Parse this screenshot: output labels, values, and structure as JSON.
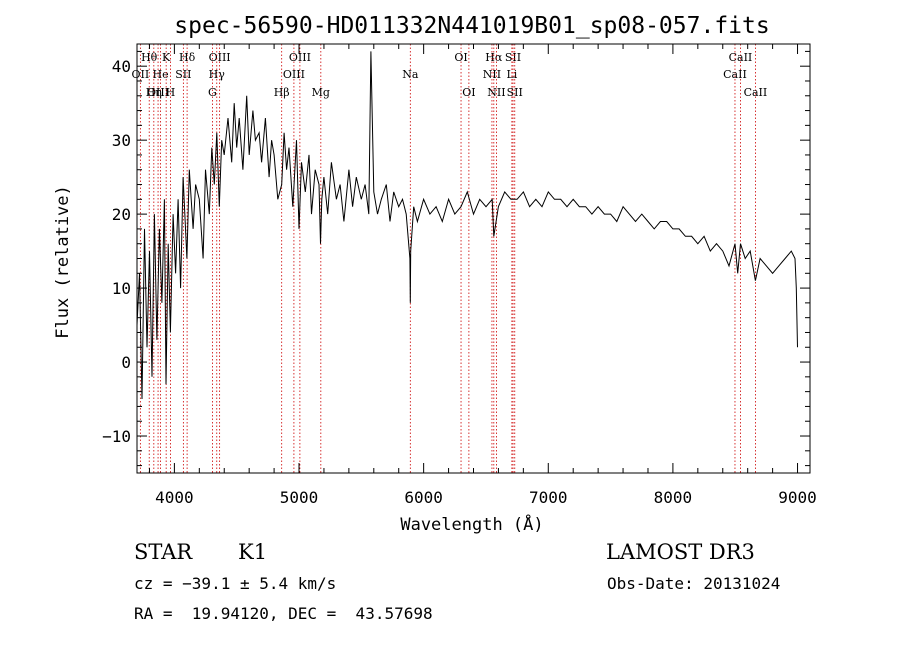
{
  "chart_data": {
    "type": "line",
    "title": "spec-56590-HD011332N441019B01_sp08-057.fits",
    "xlabel": "Wavelength (Å)",
    "ylabel": "Flux (relative)",
    "xlim": [
      3700,
      9100
    ],
    "ylim": [
      -15,
      43
    ],
    "xticks": [
      4000,
      5000,
      6000,
      7000,
      8000,
      9000
    ],
    "yticks": [
      -10,
      0,
      10,
      20,
      30,
      40
    ],
    "grid": false,
    "line_color": "#000000",
    "marker_color": "#cc0000",
    "series": [
      {
        "x": [
          3700,
          3720,
          3740,
          3760,
          3780,
          3800,
          3820,
          3840,
          3860,
          3880,
          3900,
          3920,
          3933,
          3950,
          3968,
          3990,
          4010,
          4030,
          4050,
          4070,
          4100,
          4120,
          4150,
          4170,
          4200,
          4230,
          4250,
          4280,
          4300,
          4320,
          4340,
          4360,
          4380,
          4400,
          4430,
          4460,
          4480,
          4500,
          4520,
          4550,
          4580,
          4600,
          4630,
          4650,
          4680,
          4700,
          4730,
          4760,
          4780,
          4800,
          4830,
          4861,
          4880,
          4900,
          4920,
          4950,
          4980,
          5000,
          5020,
          5050,
          5080,
          5100,
          5130,
          5160,
          5172,
          5183,
          5200,
          5230,
          5260,
          5300,
          5330,
          5360,
          5400,
          5430,
          5460,
          5500,
          5530,
          5560,
          5577,
          5600,
          5630,
          5660,
          5700,
          5730,
          5760,
          5800,
          5830,
          5860,
          5890,
          5893,
          5896,
          5920,
          5950,
          6000,
          6050,
          6100,
          6150,
          6200,
          6250,
          6300,
          6350,
          6400,
          6450,
          6500,
          6550,
          6563,
          6600,
          6650,
          6700,
          6750,
          6800,
          6850,
          6900,
          6950,
          7000,
          7050,
          7100,
          7150,
          7200,
          7250,
          7300,
          7350,
          7400,
          7450,
          7500,
          7550,
          7600,
          7650,
          7700,
          7750,
          7800,
          7850,
          7900,
          7950,
          8000,
          8050,
          8100,
          8150,
          8200,
          8250,
          8300,
          8350,
          8400,
          8450,
          8498,
          8520,
          8542,
          8580,
          8620,
          8662,
          8700,
          8750,
          8800,
          8850,
          8900,
          8950,
          8980,
          8990,
          9000
        ],
        "y": [
          5,
          12,
          -5,
          18,
          2,
          15,
          -2,
          20,
          3,
          18,
          8,
          22,
          -3,
          16,
          4,
          20,
          12,
          22,
          10,
          25,
          14,
          26,
          18,
          24,
          22,
          14,
          26,
          20,
          29,
          24,
          31,
          21,
          30,
          28,
          33,
          27,
          35,
          29,
          33,
          26,
          36,
          28,
          34,
          30,
          31,
          27,
          33,
          25,
          30,
          28,
          22,
          24,
          31,
          26,
          29,
          21,
          30,
          18,
          27,
          23,
          28,
          20,
          26,
          24,
          16,
          22,
          25,
          20,
          27,
          22,
          24,
          19,
          26,
          21,
          25,
          22,
          24,
          20,
          42,
          23,
          20,
          22,
          24,
          19,
          23,
          21,
          22,
          20,
          14,
          8,
          15,
          21,
          19,
          22,
          20,
          21,
          19,
          22,
          20,
          21,
          23,
          20,
          22,
          21,
          22,
          17,
          21,
          23,
          22,
          22,
          23,
          21,
          22,
          21,
          23,
          22,
          22,
          21,
          22,
          21,
          21,
          20,
          21,
          20,
          20,
          19,
          21,
          20,
          19,
          20,
          19,
          18,
          19,
          19,
          18,
          18,
          17,
          17,
          16,
          17,
          15,
          16,
          15,
          13,
          16,
          12,
          16,
          14,
          15,
          11,
          14,
          13,
          12,
          13,
          14,
          15,
          14,
          10,
          2
        ]
      }
    ],
    "line_markers": [
      {
        "label": "Hθ",
        "x": 3798,
        "row": 1
      },
      {
        "label": "OII",
        "x": 3727,
        "row": 2
      },
      {
        "label": "OIII",
        "x": 3869,
        "row": 3
      },
      {
        "label": "He",
        "x": 3889,
        "row": 2
      },
      {
        "label": "K",
        "x": 3934,
        "row": 1
      },
      {
        "label": "Hη",
        "x": 3835,
        "row": 3
      },
      {
        "label": "SII",
        "x": 4072,
        "row": 2
      },
      {
        "label": "H",
        "x": 3968,
        "row": 3
      },
      {
        "label": "Hδ",
        "x": 4102,
        "row": 1
      },
      {
        "label": "OIII",
        "x": 4363,
        "row": 1
      },
      {
        "label": "Hγ",
        "x": 4340,
        "row": 2
      },
      {
        "label": "G",
        "x": 4305,
        "row": 3
      },
      {
        "label": "OIII",
        "x": 5007,
        "row": 1
      },
      {
        "label": "OIII",
        "x": 4959,
        "row": 2
      },
      {
        "label": "Hβ",
        "x": 4861,
        "row": 3
      },
      {
        "label": "Mg",
        "x": 5175,
        "row": 3
      },
      {
        "label": "Na",
        "x": 5893,
        "row": 2
      },
      {
        "label": "OI",
        "x": 6300,
        "row": 1
      },
      {
        "label": "OI",
        "x": 6363,
        "row": 3
      },
      {
        "label": "Hα",
        "x": 6563,
        "row": 1
      },
      {
        "label": "NII",
        "x": 6548,
        "row": 2
      },
      {
        "label": "SII",
        "x": 6717,
        "row": 1
      },
      {
        "label": "Li",
        "x": 6708,
        "row": 2
      },
      {
        "label": "NII",
        "x": 6584,
        "row": 3
      },
      {
        "label": "SII",
        "x": 6731,
        "row": 3
      },
      {
        "label": "CaII",
        "x": 8542,
        "row": 1
      },
      {
        "label": "CaII",
        "x": 8498,
        "row": 2
      },
      {
        "label": "CaII",
        "x": 8662,
        "row": 3
      }
    ]
  },
  "info": {
    "object_class": "STAR",
    "subclass": "K1",
    "cz": "cz = −39.1 ± 5.4 km/s",
    "coords": "RA =  19.94120, DEC =  43.57698",
    "survey": "LAMOST DR3",
    "obs_date": "Obs-Date: 20131024"
  }
}
